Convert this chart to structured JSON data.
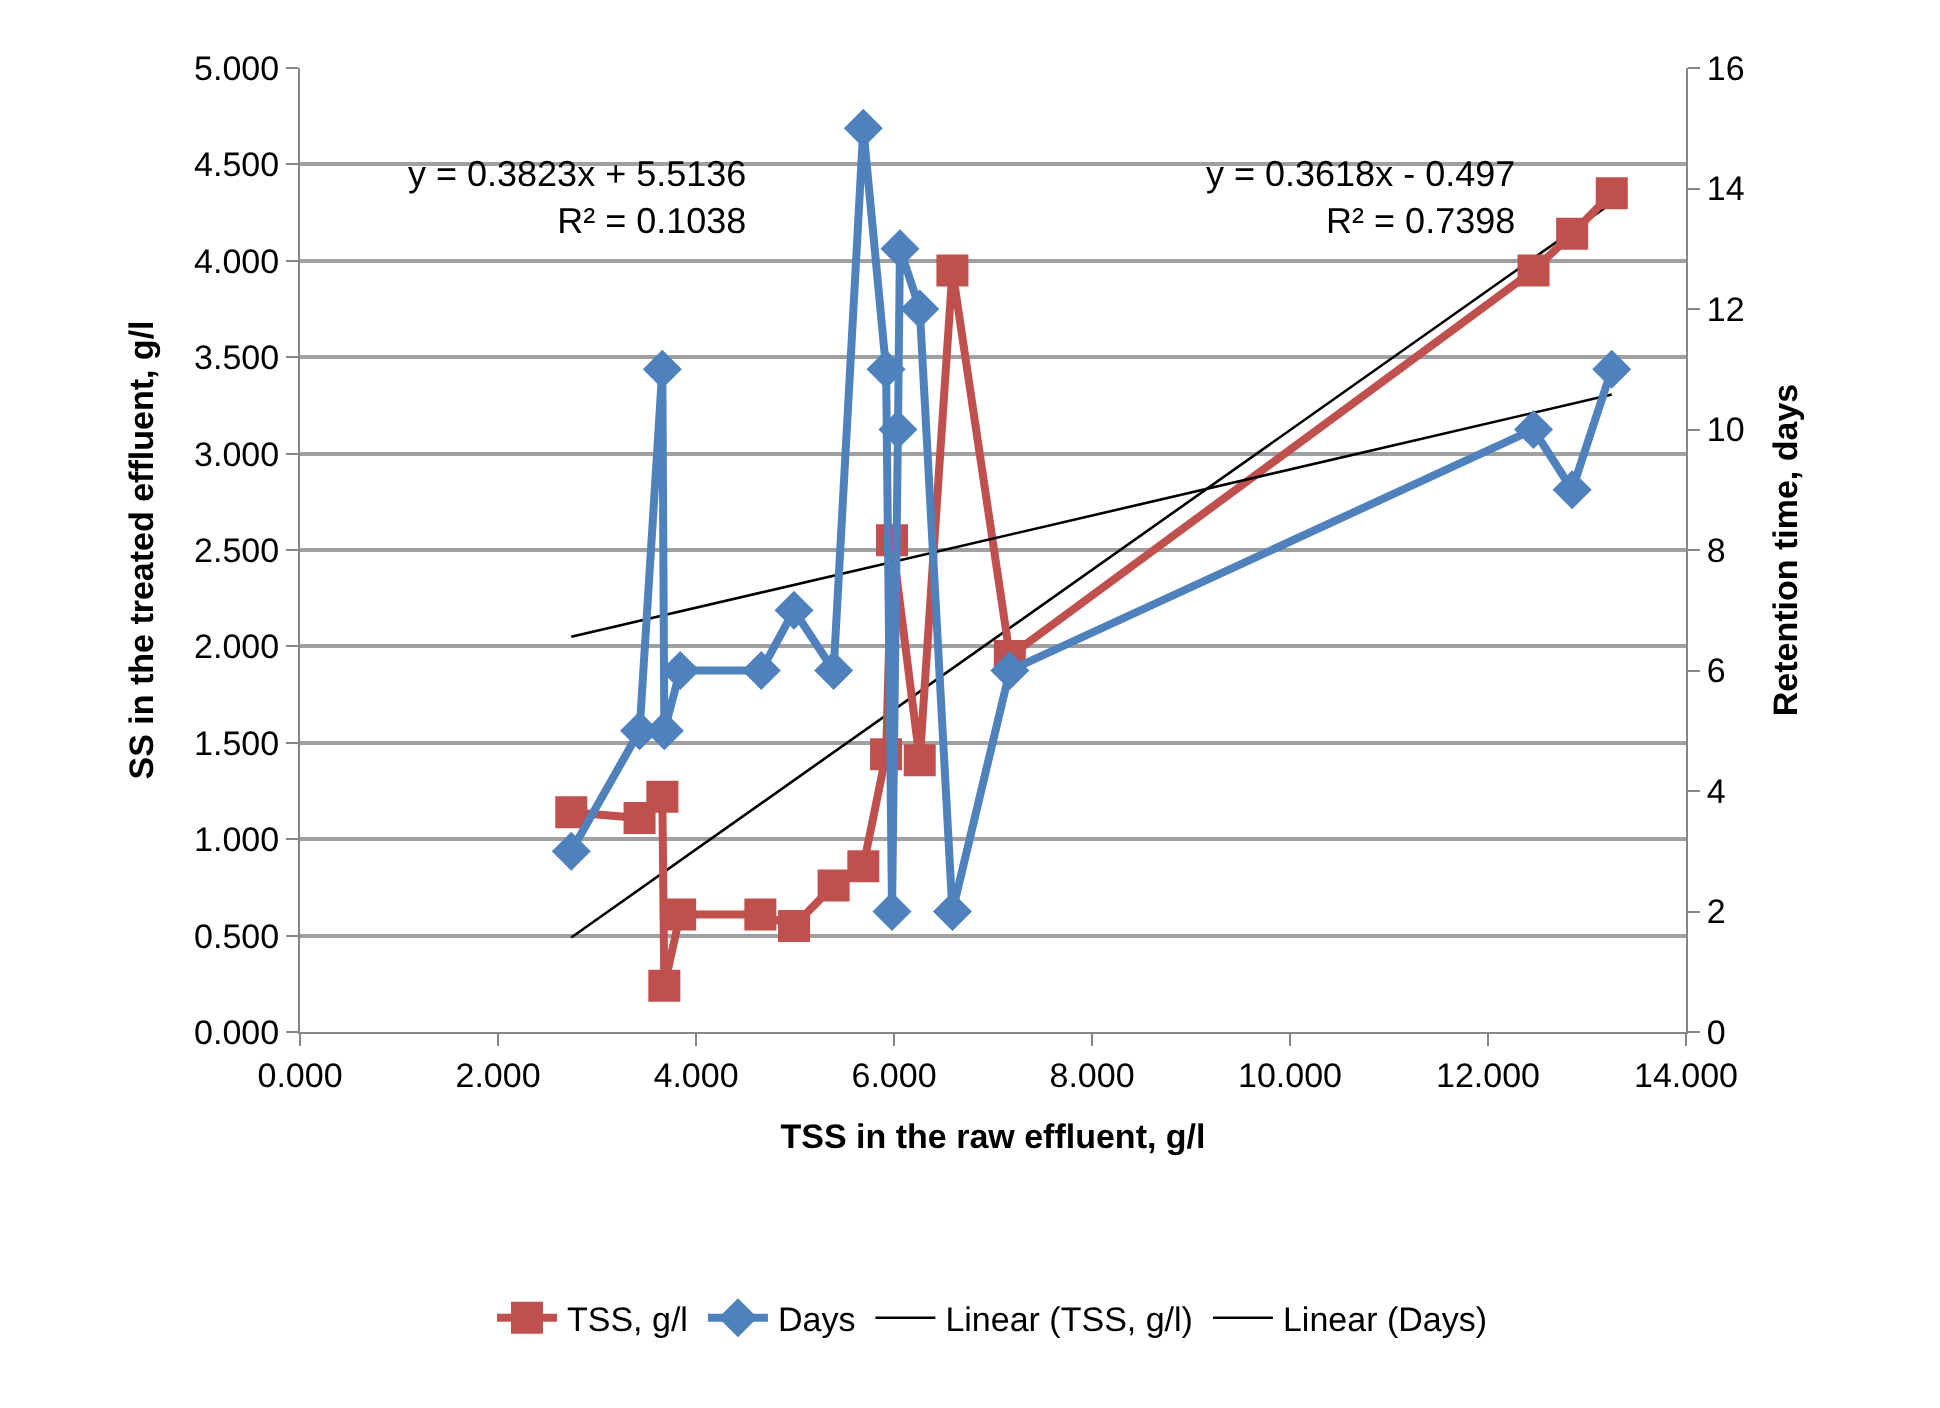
{
  "chart_data": {
    "type": "line",
    "xlabel": "TSS in the raw effluent, g/l",
    "ylabel": "SS in the treated effluent, g/l",
    "y2label": "Retention time, days",
    "xlim": [
      0,
      14
    ],
    "xticks": [
      {
        "value": 0,
        "label": "0.000"
      },
      {
        "value": 2,
        "label": "2.000"
      },
      {
        "value": 4,
        "label": "4.000"
      },
      {
        "value": 6,
        "label": "6.000"
      },
      {
        "value": 8,
        "label": "8.000"
      },
      {
        "value": 10,
        "label": "10.000"
      },
      {
        "value": 12,
        "label": "12.000"
      },
      {
        "value": 14,
        "label": "14.000"
      }
    ],
    "ylim": [
      0,
      5
    ],
    "yticks": [
      {
        "value": 0,
        "label": "0.000"
      },
      {
        "value": 0.5,
        "label": "0.500"
      },
      {
        "value": 1,
        "label": "1.000"
      },
      {
        "value": 1.5,
        "label": "1.500"
      },
      {
        "value": 2,
        "label": "2.000"
      },
      {
        "value": 2.5,
        "label": "2.500"
      },
      {
        "value": 3,
        "label": "3.000"
      },
      {
        "value": 3.5,
        "label": "3.500"
      },
      {
        "value": 4,
        "label": "4.000"
      },
      {
        "value": 4.5,
        "label": "4.500"
      },
      {
        "value": 5,
        "label": "5.000"
      }
    ],
    "y2lim": [
      0,
      16
    ],
    "y2ticks": [
      0,
      2,
      4,
      6,
      8,
      10,
      12,
      14,
      16
    ],
    "grid": "y",
    "legend": "bottom",
    "series": [
      {
        "name": "TSS, g/l",
        "color": "#c0504d",
        "marker": "square",
        "x": [
          2.74,
          3.43,
          3.66,
          3.68,
          3.84,
          4.65,
          4.99,
          5.39,
          5.69,
          5.92,
          5.98,
          6.26,
          6.59,
          7.17,
          12.46,
          12.85,
          13.25
        ],
        "values": [
          1.14,
          1.11,
          1.22,
          0.24,
          0.61,
          0.61,
          0.55,
          0.76,
          0.86,
          1.44,
          2.55,
          1.41,
          3.95,
          1.95,
          3.95,
          4.14,
          4.35
        ]
      },
      {
        "name": "Days",
        "color": "#4f81bd",
        "marker": "diamond",
        "x": [
          2.74,
          3.43,
          3.66,
          3.68,
          3.84,
          4.66,
          4.99,
          5.39,
          5.69,
          5.92,
          5.98,
          6.04,
          6.06,
          6.26,
          6.59,
          7.17,
          12.46,
          12.85,
          13.25
        ],
        "values": [
          3,
          5,
          11,
          5,
          6,
          6,
          7,
          6,
          15,
          11,
          2,
          10,
          13,
          12,
          2,
          6,
          10,
          9,
          11
        ],
        "axis": "y2"
      },
      {
        "name": "Linear (TSS, g/l)",
        "color": "#000000",
        "marker": "none",
        "x": [
          2.74,
          13.25
        ],
        "values": [
          0.49,
          4.3
        ]
      },
      {
        "name": "Linear (Days)",
        "color": "#000000",
        "marker": "none",
        "x": [
          2.74,
          13.25
        ],
        "values": [
          6.56,
          10.58
        ],
        "axis": "y2"
      }
    ],
    "annotations": [
      "y = 0.3823x + 5.5136\nR² = 0.1038",
      "y = 0.3618x - 0.497\nR² = 0.7398"
    ]
  }
}
